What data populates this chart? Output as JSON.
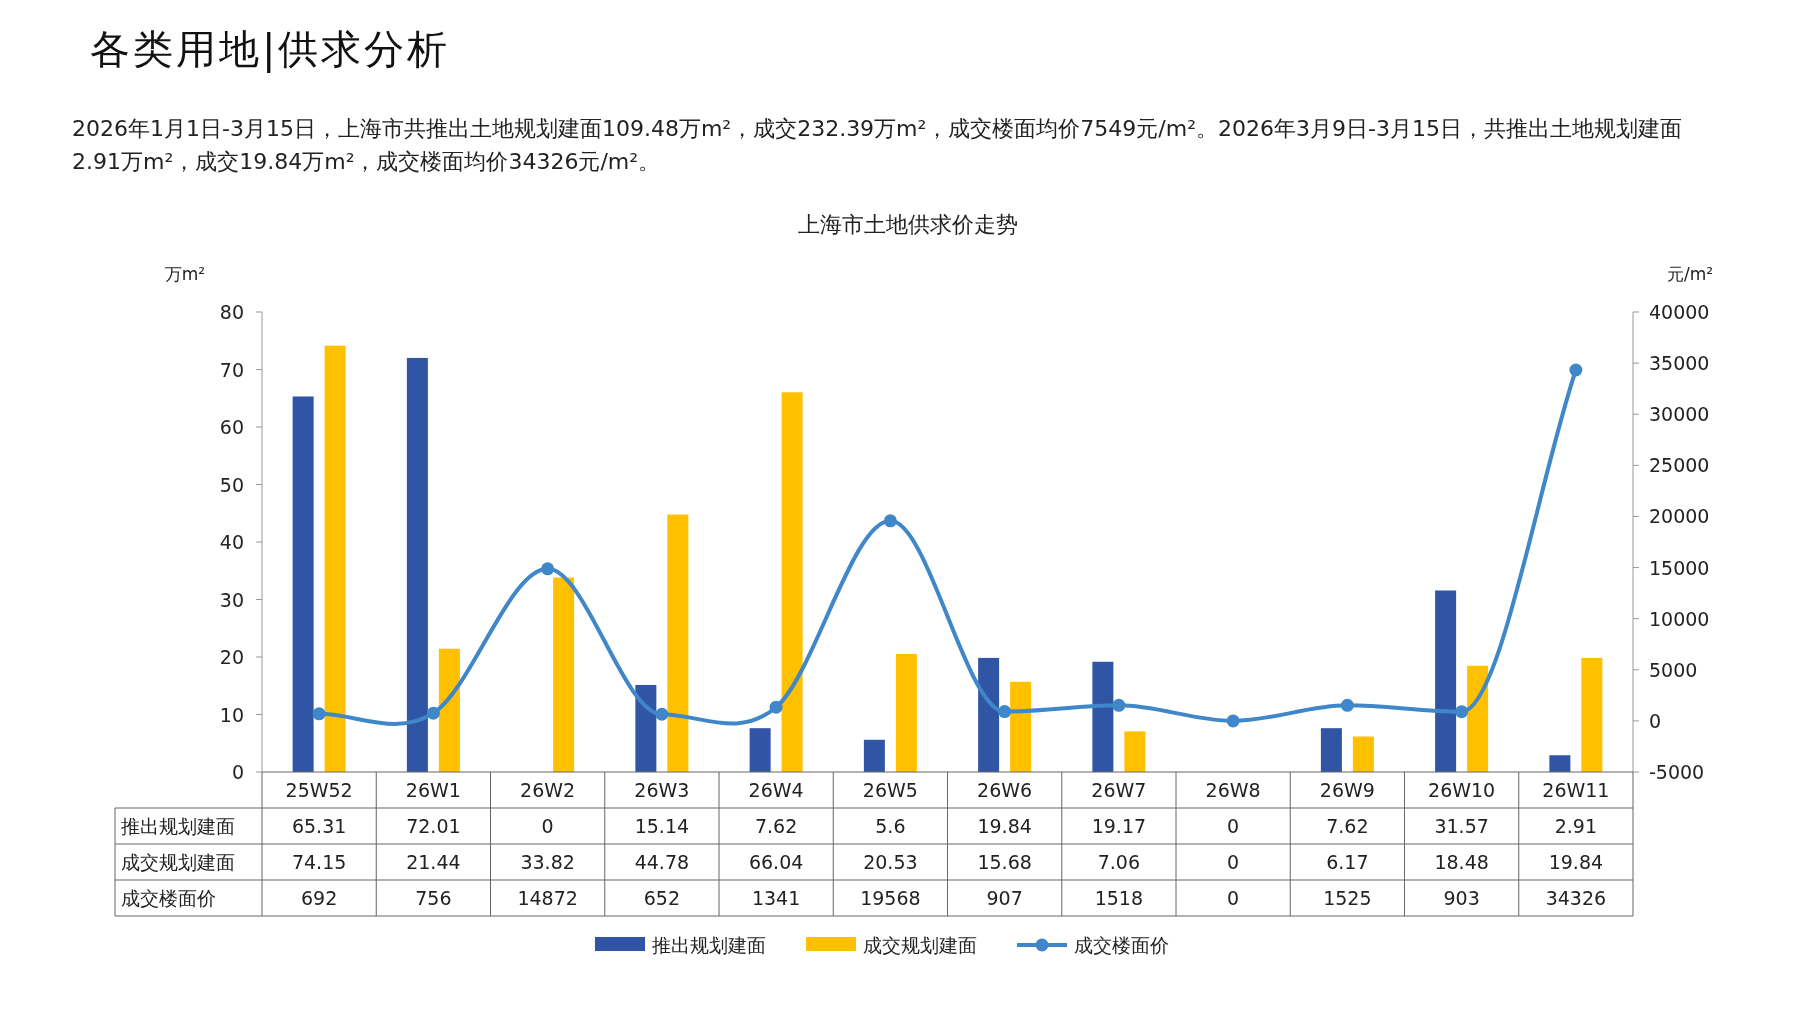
{
  "chart_data": {
    "type": "bar",
    "title": "上海市土地供求价走势",
    "ylabel": "万m²",
    "y2label": "元/m²",
    "categories": [
      "25W52",
      "26W1",
      "26W2",
      "26W3",
      "26W4",
      "26W5",
      "26W6",
      "26W7",
      "26W8",
      "26W9",
      "26W10",
      "26W11"
    ],
    "series": [
      {
        "name": "推出规划建面",
        "color": "#2f55a4",
        "values": [
          65.31,
          72.01,
          0,
          15.14,
          7.62,
          5.6,
          19.84,
          19.17,
          0,
          7.62,
          31.57,
          2.91
        ]
      },
      {
        "name": "成交规划建面",
        "color": "#ffc000",
        "values": [
          74.15,
          21.44,
          33.82,
          44.78,
          66.04,
          20.53,
          15.68,
          7.06,
          0,
          6.17,
          18.48,
          19.84
        ]
      },
      {
        "name": "成交楼面价",
        "type": "line",
        "axis": "y2",
        "color": "#3f87c9",
        "values": [
          692,
          756,
          14872,
          652,
          1341,
          19568,
          907,
          1518,
          0,
          1525,
          903,
          34326
        ]
      }
    ],
    "ylim": [
      0,
      80
    ],
    "yticks": [
      0,
      10,
      20,
      30,
      40,
      50,
      60,
      70,
      80
    ],
    "y2lim": [
      -5000,
      40000
    ],
    "y2ticks": [
      -5000,
      0,
      5000,
      10000,
      15000,
      20000,
      25000,
      30000,
      35000,
      40000
    ],
    "marker": "circle",
    "data_labels": true,
    "legend": "bottom",
    "grid": false,
    "annotations": [
      "各类用地|供求分析",
      "2026年1月1日-3月15日，上海市共推出土地规划建面109.48万m²，成交232.39万m²，成交楼面均价7549元/m²。2026年3月9日-3月15日，共推出土地规划建面2.91万m²，成交19.84万m²，成交楼面均价34326元/m²。"
    ]
  }
}
